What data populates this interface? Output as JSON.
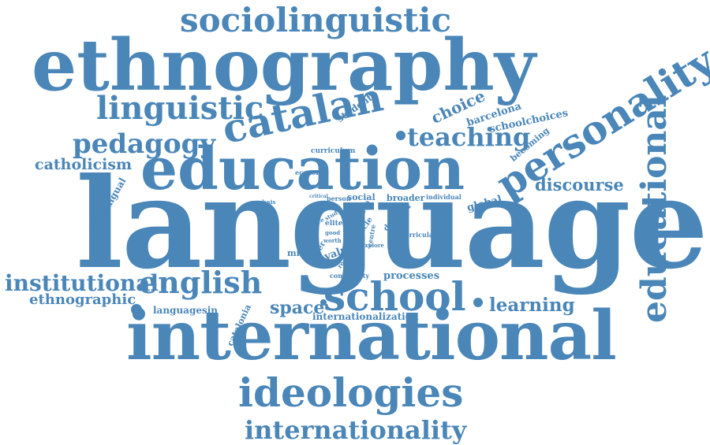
{
  "color": "#4a86b8",
  "background": "#ffffff",
  "words": [
    "sociolinguistic",
    "ethnography",
    "linguistic",
    "catalan",
    "personality",
    "pedagogy",
    "education",
    "teaching",
    "choice",
    "catholicism",
    "discourse",
    "educational",
    "language",
    "institutional",
    "english",
    "school",
    "ethnographic",
    "learning",
    "space",
    "international",
    "ideologies",
    "internationality",
    "student",
    "barcelona",
    "schoolchoices",
    "becoming",
    "curriculum",
    "economic",
    "classes",
    "multilingual",
    "global",
    "broader",
    "individual",
    "social",
    "person",
    "critical",
    "analysis",
    "study",
    "form",
    "article",
    "demand",
    "practice",
    "elite",
    "good",
    "worth",
    "value",
    "better",
    "centre",
    "way",
    "curricula",
    "explore",
    "research",
    "middle",
    "community",
    "processes",
    "languagesin",
    "catalonia",
    "internationalization"
  ]
}
